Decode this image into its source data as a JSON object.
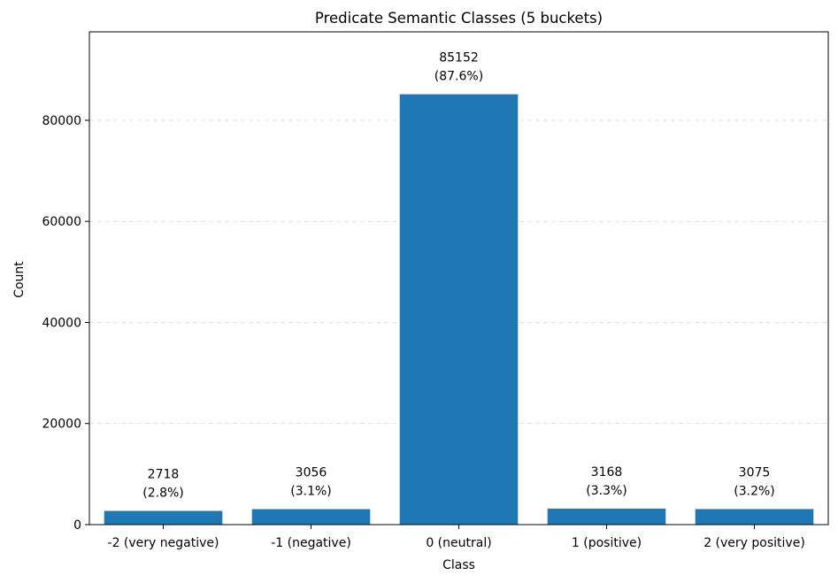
{
  "chart_data": {
    "type": "bar",
    "title": "Predicate Semantic Classes (5 buckets)",
    "xlabel": "Class",
    "ylabel": "Count",
    "categories": [
      "-2 (very negative)",
      "-1 (negative)",
      "0 (neutral)",
      "1 (positive)",
      "2 (very positive)"
    ],
    "values": [
      2718,
      3056,
      85152,
      3168,
      3075
    ],
    "value_labels": [
      "2718",
      "3056",
      "85152",
      "3168",
      "3075"
    ],
    "percent_labels": [
      "(2.8%)",
      "(3.1%)",
      "(87.6%)",
      "(3.3%)",
      "(3.2%)"
    ],
    "ylim": [
      0,
      97500
    ],
    "yticks": [
      0,
      20000,
      40000,
      60000,
      80000
    ],
    "ytick_labels": [
      "0",
      "20000",
      "40000",
      "60000",
      "80000"
    ],
    "grid": "y-dashed",
    "bar_color": "#1f77b4"
  }
}
